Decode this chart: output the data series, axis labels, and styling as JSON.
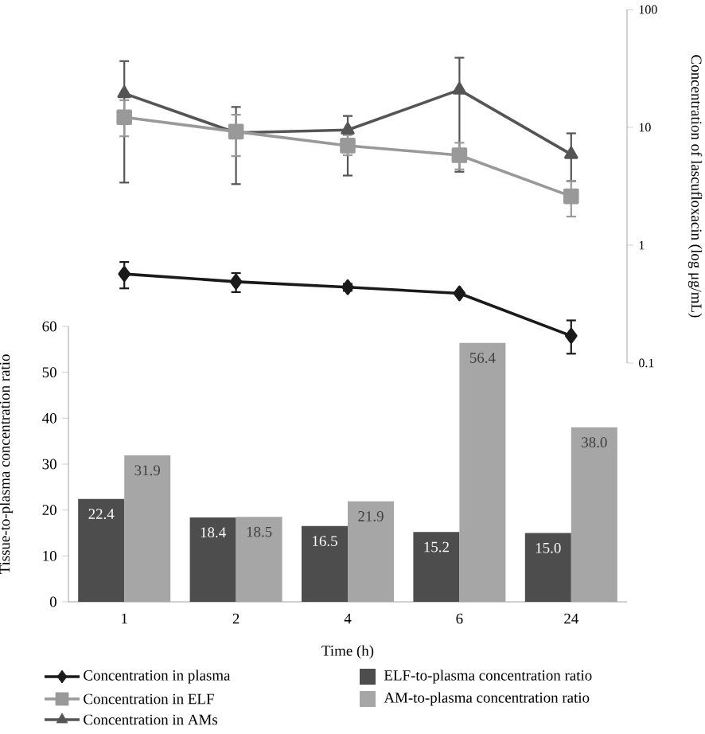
{
  "chart_data": [
    {
      "type": "line",
      "ylabel": "Concentration of lascufloxacin (log μg/mL)",
      "categories": [
        "1",
        "2",
        "4",
        "6",
        "24"
      ],
      "series": [
        {
          "name": "Concentration in plasma",
          "marker": "diamond",
          "color": "#1a1a1a",
          "values": [
            0.57,
            0.49,
            0.44,
            0.39,
            0.17
          ],
          "errors": [
            [
              0.43,
              0.72
            ],
            [
              0.4,
              0.58
            ],
            [
              0.41,
              0.47
            ],
            null,
            [
              0.12,
              0.23
            ]
          ]
        },
        {
          "name": "Concentration in ELF",
          "marker": "square",
          "color": "#999999",
          "values": [
            12.2,
            9.2,
            7.0,
            5.8,
            2.6
          ],
          "errors": [
            [
              8.4,
              17
            ],
            [
              5.7,
              12.8
            ],
            [
              5.8,
              8.6
            ],
            [
              4.4,
              7.4
            ],
            [
              1.75,
              3.5
            ]
          ]
        },
        {
          "name": "Concentration in AMs",
          "marker": "triangle",
          "color": "#555555",
          "values": [
            19.4,
            9.0,
            9.5,
            20.8,
            5.9
          ],
          "errors": [
            [
              3.4,
              36.5
            ],
            [
              3.3,
              14.9
            ],
            [
              3.9,
              12.5
            ],
            [
              4.2,
              39
            ],
            [
              3.5,
              8.9
            ]
          ]
        }
      ],
      "ylim": [
        0.1,
        100
      ],
      "yticks": [
        0.1,
        1,
        10,
        100
      ],
      "log": true,
      "tick_labels": "y",
      "legend": "bottom"
    },
    {
      "type": "bar",
      "xlabel": "Time (h)",
      "ylabel": "Tissue-to-plasma concentration ratio",
      "categories": [
        "1",
        "2",
        "4",
        "6",
        "24"
      ],
      "series": [
        {
          "name": "ELF-to-plasma concentration ratio",
          "color": "#4d4d4d",
          "values": [
            22.4,
            18.4,
            16.5,
            15.2,
            15.0
          ],
          "value_labels": [
            "22.4",
            "18.4",
            "16.5",
            "15.2",
            "15.0"
          ]
        },
        {
          "name": "AM-to-plasma concentration ratio",
          "color": "#a6a6a6",
          "values": [
            31.9,
            18.5,
            21.9,
            56.4,
            38.0
          ],
          "value_labels": [
            "31.9",
            "18.5",
            "21.9",
            "56.4",
            "38.0"
          ]
        }
      ],
      "ylim": [
        0,
        60
      ],
      "yticks": [
        0,
        10,
        20,
        30,
        40,
        50,
        60
      ],
      "legend": "bottom"
    }
  ]
}
